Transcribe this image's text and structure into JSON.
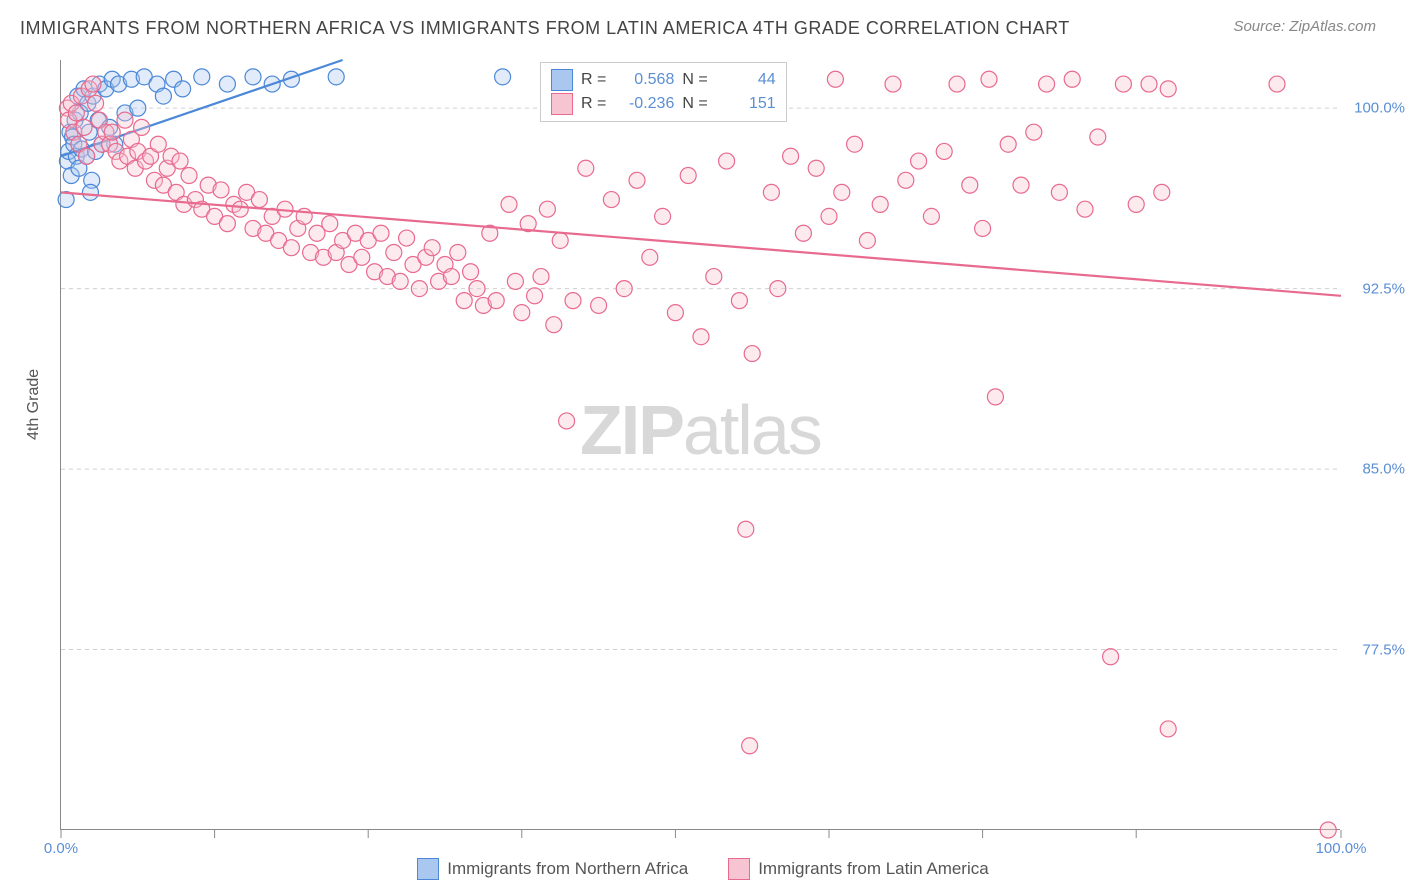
{
  "title": "IMMIGRANTS FROM NORTHERN AFRICA VS IMMIGRANTS FROM LATIN AMERICA 4TH GRADE CORRELATION CHART",
  "source": "Source: ZipAtlas.com",
  "y_axis_title": "4th Grade",
  "watermark_a": "ZIP",
  "watermark_b": "atlas",
  "chart": {
    "type": "scatter",
    "background_color": "#ffffff",
    "grid_color": "#d0d0d0",
    "axis_color": "#888888",
    "label_color": "#5b8fd4",
    "xlim": [
      0,
      100
    ],
    "ylim": [
      70,
      102
    ],
    "y_ticks": [
      77.5,
      85.0,
      92.5,
      100.0
    ],
    "y_tick_labels": [
      "77.5%",
      "85.0%",
      "92.5%",
      "100.0%"
    ],
    "x_ticks": [
      0,
      12,
      24,
      36,
      48,
      60,
      72,
      84,
      100
    ],
    "x_tick_labels_shown": {
      "0": "0.0%",
      "100": "100.0%"
    },
    "marker_radius": 8,
    "marker_stroke_width": 1.2,
    "marker_fill_opacity": 0.35,
    "trend_line_width": 2.2,
    "series": [
      {
        "name": "Immigrants from Northern Africa",
        "color_fill": "#a9c7ef",
        "color_stroke": "#4b88d8",
        "R": "0.568",
        "N": "44",
        "trend": {
          "x1": 0,
          "y1": 98.0,
          "x2": 22,
          "y2": 102.0
        },
        "points": [
          [
            0.5,
            97.8
          ],
          [
            0.6,
            98.2
          ],
          [
            0.7,
            99.0
          ],
          [
            0.8,
            97.2
          ],
          [
            0.9,
            98.8
          ],
          [
            1.0,
            98.5
          ],
          [
            1.1,
            99.5
          ],
          [
            1.2,
            98.0
          ],
          [
            1.3,
            100.5
          ],
          [
            1.4,
            97.5
          ],
          [
            1.5,
            99.8
          ],
          [
            1.6,
            98.3
          ],
          [
            1.8,
            100.8
          ],
          [
            2.0,
            98.0
          ],
          [
            2.1,
            100.2
          ],
          [
            2.2,
            99.0
          ],
          [
            2.4,
            97.0
          ],
          [
            2.5,
            100.5
          ],
          [
            2.7,
            98.2
          ],
          [
            2.9,
            99.5
          ],
          [
            3.0,
            101.0
          ],
          [
            3.2,
            98.5
          ],
          [
            3.5,
            100.8
          ],
          [
            3.8,
            99.2
          ],
          [
            4.0,
            101.2
          ],
          [
            4.2,
            98.5
          ],
          [
            4.5,
            101.0
          ],
          [
            5.0,
            99.8
          ],
          [
            5.5,
            101.2
          ],
          [
            6.0,
            100.0
          ],
          [
            6.5,
            101.3
          ],
          [
            7.5,
            101.0
          ],
          [
            8.0,
            100.5
          ],
          [
            8.8,
            101.2
          ],
          [
            9.5,
            100.8
          ],
          [
            11.0,
            101.3
          ],
          [
            13.0,
            101.0
          ],
          [
            15.0,
            101.3
          ],
          [
            16.5,
            101.0
          ],
          [
            18.0,
            101.2
          ],
          [
            21.5,
            101.3
          ],
          [
            34.5,
            101.3
          ],
          [
            0.4,
            96.2
          ],
          [
            2.3,
            96.5
          ]
        ]
      },
      {
        "name": "Immigrants from Latin America",
        "color_fill": "#f7c4d1",
        "color_stroke": "#e86a8e",
        "R": "-0.236",
        "N": "151",
        "trend": {
          "x1": 0,
          "y1": 96.5,
          "x2": 100,
          "y2": 92.2
        },
        "points": [
          [
            0.5,
            100.0
          ],
          [
            0.6,
            99.5
          ],
          [
            0.8,
            100.2
          ],
          [
            1.0,
            99.0
          ],
          [
            1.2,
            99.8
          ],
          [
            1.4,
            98.5
          ],
          [
            1.6,
            100.5
          ],
          [
            1.8,
            99.2
          ],
          [
            2.0,
            98.0
          ],
          [
            2.2,
            100.8
          ],
          [
            2.5,
            101.0
          ],
          [
            2.7,
            100.2
          ],
          [
            3.0,
            99.5
          ],
          [
            3.2,
            98.5
          ],
          [
            3.5,
            99.0
          ],
          [
            3.8,
            98.5
          ],
          [
            4.0,
            99.0
          ],
          [
            4.3,
            98.2
          ],
          [
            4.6,
            97.8
          ],
          [
            5.0,
            99.5
          ],
          [
            5.2,
            98.0
          ],
          [
            5.5,
            98.7
          ],
          [
            5.8,
            97.5
          ],
          [
            6.0,
            98.2
          ],
          [
            6.3,
            99.2
          ],
          [
            6.6,
            97.8
          ],
          [
            7.0,
            98.0
          ],
          [
            7.3,
            97.0
          ],
          [
            7.6,
            98.5
          ],
          [
            8.0,
            96.8
          ],
          [
            8.3,
            97.5
          ],
          [
            8.6,
            98.0
          ],
          [
            9.0,
            96.5
          ],
          [
            9.3,
            97.8
          ],
          [
            9.6,
            96.0
          ],
          [
            10.0,
            97.2
          ],
          [
            10.5,
            96.2
          ],
          [
            11.0,
            95.8
          ],
          [
            11.5,
            96.8
          ],
          [
            12.0,
            95.5
          ],
          [
            12.5,
            96.6
          ],
          [
            13.0,
            95.2
          ],
          [
            13.5,
            96.0
          ],
          [
            14.0,
            95.8
          ],
          [
            14.5,
            96.5
          ],
          [
            15.0,
            95.0
          ],
          [
            15.5,
            96.2
          ],
          [
            16.0,
            94.8
          ],
          [
            16.5,
            95.5
          ],
          [
            17.0,
            94.5
          ],
          [
            17.5,
            95.8
          ],
          [
            18.0,
            94.2
          ],
          [
            18.5,
            95.0
          ],
          [
            19.0,
            95.5
          ],
          [
            19.5,
            94.0
          ],
          [
            20.0,
            94.8
          ],
          [
            20.5,
            93.8
          ],
          [
            21.0,
            95.2
          ],
          [
            21.5,
            94.0
          ],
          [
            22.0,
            94.5
          ],
          [
            22.5,
            93.5
          ],
          [
            23.0,
            94.8
          ],
          [
            23.5,
            93.8
          ],
          [
            24.0,
            94.5
          ],
          [
            24.5,
            93.2
          ],
          [
            25.0,
            94.8
          ],
          [
            25.5,
            93.0
          ],
          [
            26.0,
            94.0
          ],
          [
            26.5,
            92.8
          ],
          [
            27.0,
            94.6
          ],
          [
            27.5,
            93.5
          ],
          [
            28.0,
            92.5
          ],
          [
            28.5,
            93.8
          ],
          [
            29.0,
            94.2
          ],
          [
            29.5,
            92.8
          ],
          [
            30.0,
            93.5
          ],
          [
            30.5,
            93.0
          ],
          [
            31.0,
            94.0
          ],
          [
            31.5,
            92.0
          ],
          [
            32.0,
            93.2
          ],
          [
            32.5,
            92.5
          ],
          [
            33.0,
            91.8
          ],
          [
            33.5,
            94.8
          ],
          [
            34.0,
            92.0
          ],
          [
            35.0,
            96.0
          ],
          [
            35.5,
            92.8
          ],
          [
            36.0,
            91.5
          ],
          [
            36.5,
            95.2
          ],
          [
            37.0,
            92.2
          ],
          [
            37.5,
            93.0
          ],
          [
            38.0,
            95.8
          ],
          [
            38.5,
            91.0
          ],
          [
            39.0,
            94.5
          ],
          [
            39.5,
            87.0
          ],
          [
            40.0,
            92.0
          ],
          [
            41.0,
            97.5
          ],
          [
            42.0,
            91.8
          ],
          [
            43.0,
            96.2
          ],
          [
            44.0,
            92.5
          ],
          [
            45.0,
            97.0
          ],
          [
            46.0,
            93.8
          ],
          [
            47.0,
            95.5
          ],
          [
            48.0,
            91.5
          ],
          [
            49.0,
            97.2
          ],
          [
            50.0,
            90.5
          ],
          [
            51.0,
            93.0
          ],
          [
            52.0,
            97.8
          ],
          [
            53.0,
            92.0
          ],
          [
            54.0,
            89.8
          ],
          [
            55.0,
            101.0
          ],
          [
            55.5,
            96.5
          ],
          [
            56.0,
            92.5
          ],
          [
            57.0,
            98.0
          ],
          [
            58.0,
            94.8
          ],
          [
            59.0,
            97.5
          ],
          [
            60.0,
            95.5
          ],
          [
            60.5,
            101.2
          ],
          [
            61.0,
            96.5
          ],
          [
            62.0,
            98.5
          ],
          [
            63.0,
            94.5
          ],
          [
            64.0,
            96.0
          ],
          [
            65.0,
            101.0
          ],
          [
            66.0,
            97.0
          ],
          [
            67.0,
            97.8
          ],
          [
            68.0,
            95.5
          ],
          [
            69.0,
            98.2
          ],
          [
            70.0,
            101.0
          ],
          [
            71.0,
            96.8
          ],
          [
            72.0,
            95.0
          ],
          [
            72.5,
            101.2
          ],
          [
            73.0,
            88.0
          ],
          [
            74.0,
            98.5
          ],
          [
            75.0,
            96.8
          ],
          [
            76.0,
            99.0
          ],
          [
            77.0,
            101.0
          ],
          [
            78.0,
            96.5
          ],
          [
            79.0,
            101.2
          ],
          [
            80.0,
            95.8
          ],
          [
            81.0,
            98.8
          ],
          [
            82.0,
            77.2
          ],
          [
            83.0,
            101.0
          ],
          [
            84.0,
            96.0
          ],
          [
            85.0,
            101.0
          ],
          [
            86.0,
            96.5
          ],
          [
            86.5,
            74.2
          ],
          [
            95.0,
            101.0
          ],
          [
            53.5,
            82.5
          ],
          [
            53.8,
            73.5
          ],
          [
            86.5,
            100.8
          ],
          [
            99.0,
            70.0
          ]
        ]
      }
    ]
  },
  "x_legend": [
    {
      "label": "Immigrants from Northern Africa",
      "fill": "#a9c7ef",
      "stroke": "#4b88d8"
    },
    {
      "label": "Immigrants from Latin America",
      "fill": "#f7c4d1",
      "stroke": "#e86a8e"
    }
  ]
}
